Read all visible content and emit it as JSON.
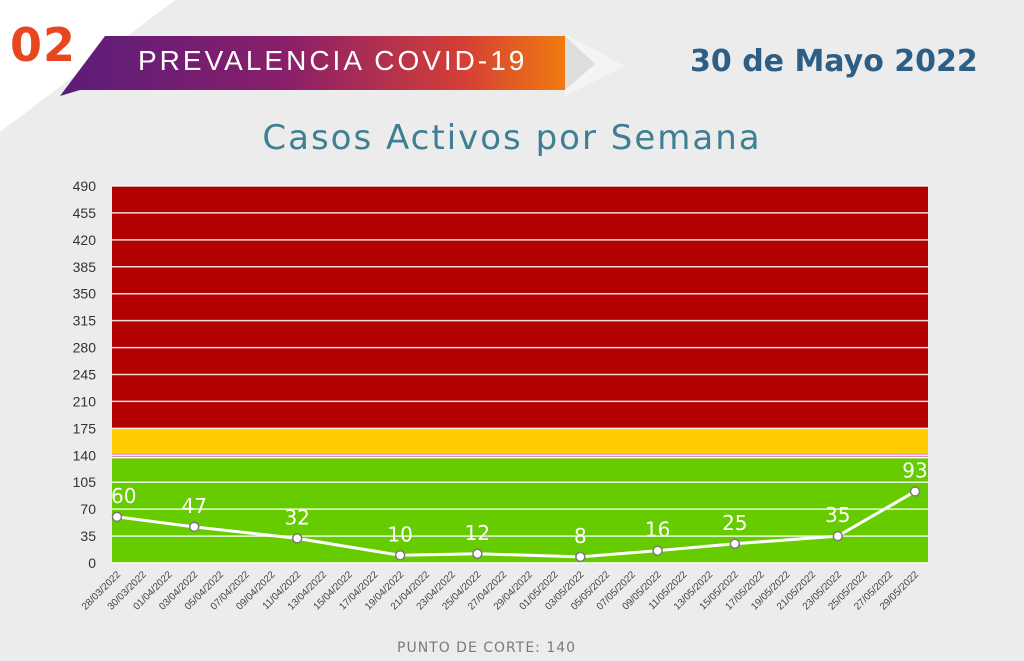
{
  "header": {
    "section_number": "02",
    "banner_title": "PREVALENCIA COVID-19",
    "date": "30 de Mayo 2022",
    "subtitle": "Casos Activos por Semana"
  },
  "footer": {
    "cutoff_text": "PUNTO DE CORTE: 140"
  },
  "colors": {
    "red_zone": "#b30000",
    "yellow_zone": "#ffcc00",
    "green_zone": "#66cc00",
    "cutoff_line": "#d46a9a",
    "series_line": "#ffffff",
    "title_teal": "#3f7f94",
    "number_orange": "#e8461e"
  },
  "chart_data": {
    "type": "line",
    "title": "Casos Activos por Semana",
    "ylim": [
      0,
      490
    ],
    "yticks": [
      0,
      35,
      70,
      105,
      140,
      175,
      210,
      245,
      280,
      315,
      350,
      385,
      420,
      455,
      490
    ],
    "x_tick_labels": [
      "28/03/2022",
      "30/03/2022",
      "01/04/2022",
      "03/04/2022",
      "05/04/2022",
      "07/04/2022",
      "09/04/2022",
      "11/04/2022",
      "13/04/2022",
      "15/04/2022",
      "17/04/2022",
      "19/04/2022",
      "21/04/2022",
      "23/04/2022",
      "25/04/2022",
      "27/04/2022",
      "29/04/2022",
      "01/05/2022",
      "03/05/2022",
      "05/05/2022",
      "07/05/2022",
      "09/05/2022",
      "11/05/2022",
      "13/05/2022",
      "15/05/2022",
      "17/05/2022",
      "19/05/2022",
      "21/05/2022",
      "23/05/2022",
      "25/05/2022",
      "27/05/2022",
      "29/05/2022"
    ],
    "bands": [
      {
        "from": 0,
        "to": 136,
        "color": "green"
      },
      {
        "from": 140,
        "to": 175,
        "color": "yellow"
      },
      {
        "from": 175,
        "to": 490,
        "color": "red"
      }
    ],
    "cutoff": 140,
    "series": [
      {
        "x": [
          "28/03/2022",
          "03/04/2022",
          "11/04/2022",
          "19/04/2022",
          "25/04/2022",
          "03/05/2022",
          "09/05/2022",
          "15/05/2022",
          "23/05/2022",
          "29/05/2022"
        ],
        "values": [
          60,
          47,
          32,
          10,
          12,
          8,
          16,
          25,
          35,
          93
        ]
      }
    ]
  }
}
